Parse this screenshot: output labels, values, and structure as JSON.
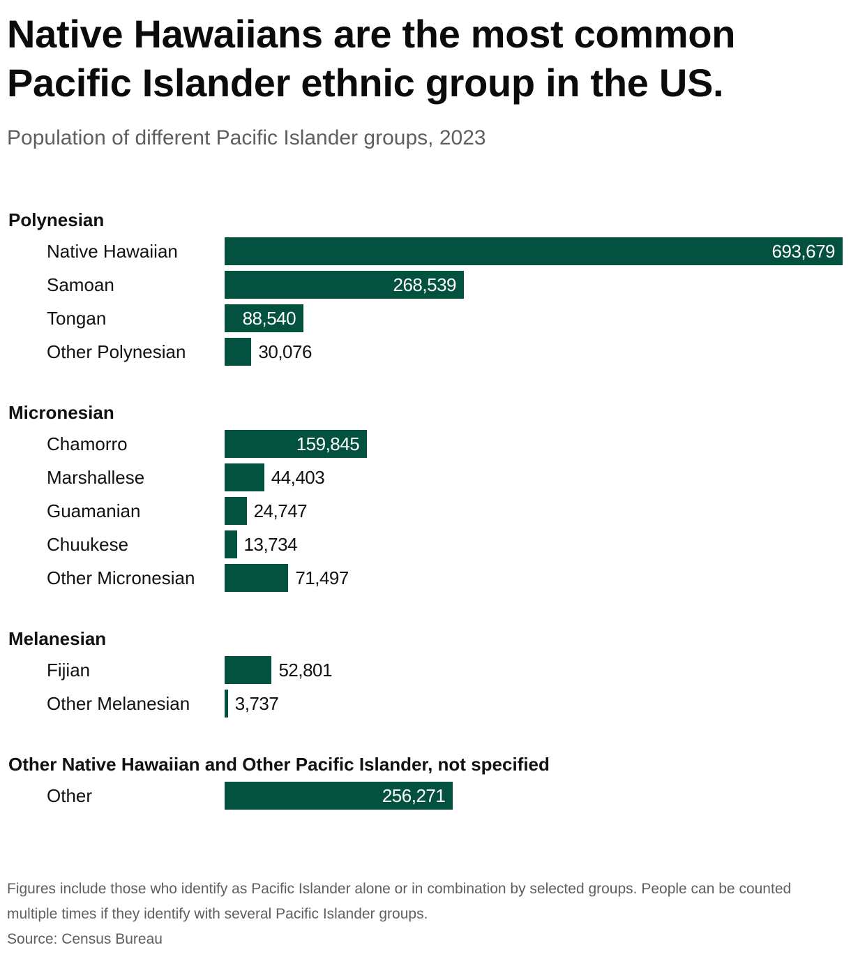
{
  "chart_data": {
    "type": "bar",
    "orientation": "horizontal",
    "title": "Native Hawaiians are the most common Pacific Islander ethnic group in the US.",
    "subtitle": "Population of different Pacific Islander groups, 2023",
    "groups": [
      {
        "name": "Polynesian",
        "categories": [
          "Native Hawaiian",
          "Samoan",
          "Tongan",
          "Other Polynesian"
        ],
        "values": [
          693679,
          268539,
          88540,
          30076
        ],
        "value_labels": [
          "693,679",
          "268,539",
          "88,540",
          "30,076"
        ]
      },
      {
        "name": "Micronesian",
        "categories": [
          "Chamorro",
          "Marshallese",
          "Guamanian",
          "Chuukese",
          "Other Micronesian"
        ],
        "values": [
          159845,
          44403,
          24747,
          13734,
          71497
        ],
        "value_labels": [
          "159,845",
          "44,403",
          "24,747",
          "13,734",
          "71,497"
        ]
      },
      {
        "name": "Melanesian",
        "categories": [
          "Fijian",
          "Other Melanesian"
        ],
        "values": [
          52801,
          3737
        ],
        "value_labels": [
          "52,801",
          "3,737"
        ]
      },
      {
        "name": "Other Native Hawaiian and Other Pacific Islander, not specified",
        "categories": [
          "Other"
        ],
        "values": [
          256271
        ],
        "value_labels": [
          "256,271"
        ]
      }
    ],
    "xlim": [
      0,
      693679
    ],
    "grid": false,
    "legend": "none",
    "bar_color": "#03513f",
    "inside_label_color": "#ffffff",
    "outside_label_color": "#111111"
  },
  "footer": {
    "note": "Figures include those who identify as Pacific Islander alone or in combination by selected groups. People can be counted multiple times if they identify with several Pacific Islander groups.",
    "source": "Source: Census Bureau"
  }
}
